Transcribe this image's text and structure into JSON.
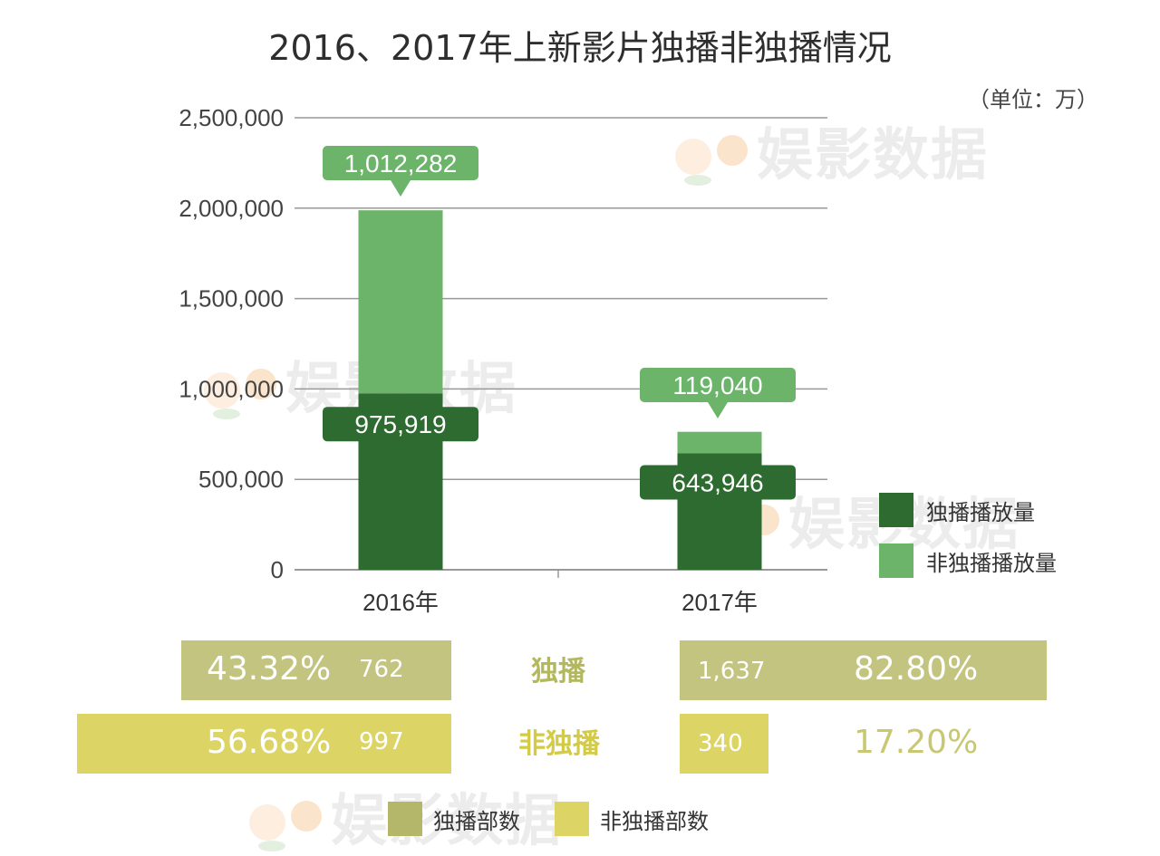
{
  "title": "2016、2017年上新影片独播非独播情况",
  "unit": "（单位：万）",
  "watermark": "娱影数据",
  "colors": {
    "exclusive": "#2e6b30",
    "non_exclusive": "#6bb46a",
    "olive": "#c2c47f",
    "yellow": "#ddd466",
    "olive_text": "#b3b85e",
    "yellow_text": "#d3cb45",
    "grid": "#999999"
  },
  "chart_data": {
    "type": "bar",
    "stacked": true,
    "title": "2016、2017年上新影片独播非独播情况",
    "unit": "（单位：万）",
    "categories": [
      "2016年",
      "2017年"
    ],
    "series": [
      {
        "name": "独播播放量",
        "values": [
          975919,
          643946
        ],
        "labels": [
          "975,919",
          "643,946"
        ]
      },
      {
        "name": "非独播播放量",
        "values": [
          1012282,
          119040
        ],
        "labels": [
          "1,012,282",
          "119,040"
        ]
      }
    ],
    "ylim": [
      0,
      2500000
    ],
    "yticks": [
      "0",
      "500,000",
      "1,000,000",
      "1,500,000",
      "2,000,000",
      "2,500,000"
    ],
    "grid": true,
    "legend_position": "right"
  },
  "legend": [
    {
      "name": "独播播放量"
    },
    {
      "name": "非独播播放量"
    }
  ],
  "counts": {
    "rows": [
      {
        "label": "独播",
        "y2016": {
          "percent": "43.32%",
          "count": "762",
          "share": 0.4332
        },
        "y2017": {
          "percent": "82.80%",
          "count": "1,637",
          "share": 0.828
        }
      },
      {
        "label": "非独播",
        "y2016": {
          "percent": "56.68%",
          "count": "997",
          "share": 0.5668
        },
        "y2017": {
          "percent": "17.20%",
          "count": "340",
          "share": 0.172
        }
      }
    ],
    "legend": [
      "独播部数",
      "非独播部数"
    ]
  }
}
